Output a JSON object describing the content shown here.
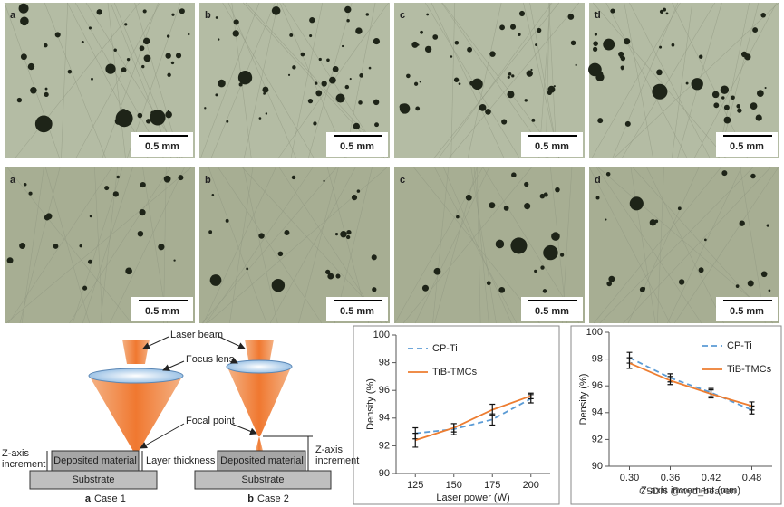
{
  "micrographs": {
    "rows": [
      [
        {
          "label": "a",
          "scale": "0.5 mm"
        },
        {
          "label": "b",
          "scale": "0.5 mm"
        },
        {
          "label": "c",
          "scale": "0.5 mm"
        },
        {
          "label": "d",
          "scale": "0.5 mm"
        }
      ],
      [
        {
          "label": "a",
          "scale": "0.5 mm"
        },
        {
          "label": "b",
          "scale": "0.5 mm"
        },
        {
          "label": "c",
          "scale": "0.5 mm"
        },
        {
          "label": "d",
          "scale": "0.5 mm"
        }
      ]
    ]
  },
  "diagram": {
    "laser_beam": "Laser beam",
    "focus_lens": "Focus lens",
    "focal_point": "Focal point",
    "layer_thickness": "Layer thickness",
    "case1": {
      "letter": "a",
      "caption": "Case 1",
      "deposited": "Deposited material",
      "substrate": "Substrate",
      "z_axis": [
        "Z-axis",
        "increment"
      ]
    },
    "case2": {
      "letter": "b",
      "caption": "Case 2",
      "deposited": "Deposited material",
      "substrate": "Substrate",
      "z_axis": [
        "Z-axis",
        "increment"
      ]
    }
  },
  "chart_data": [
    {
      "type": "line",
      "x_label": "Laser power (W)",
      "y_label": "Density (%)",
      "categories": [
        "125",
        "150",
        "175",
        "200"
      ],
      "ylim": [
        90,
        100
      ],
      "yticks": [
        90,
        92,
        94,
        96,
        98,
        100
      ],
      "series": [
        {
          "name": "CP-Ti",
          "color": "#5b9bd5",
          "dashed": true,
          "values": [
            92.9,
            93.2,
            93.9,
            95.4
          ],
          "errors": [
            0.4,
            0.4,
            0.4,
            0.3
          ]
        },
        {
          "name": "TiB-TMCs",
          "color": "#ed7d31",
          "dashed": false,
          "values": [
            92.4,
            93.3,
            94.6,
            95.6
          ],
          "errors": [
            0.5,
            0.3,
            0.4,
            0.2
          ]
        }
      ]
    },
    {
      "type": "line",
      "x_label": "Z-axis increment (mm)",
      "y_label": "Density (%)",
      "categories": [
        "0.30",
        "0.36",
        "0.42",
        "0.48"
      ],
      "ylim": [
        90,
        100
      ],
      "yticks": [
        90,
        92,
        94,
        96,
        98,
        100
      ],
      "series": [
        {
          "name": "CP-Ti",
          "color": "#5b9bd5",
          "dashed": true,
          "values": [
            98.1,
            96.6,
            95.5,
            94.2
          ],
          "errors": [
            0.4,
            0.3,
            0.3,
            0.3
          ]
        },
        {
          "name": "TiB-TMCs",
          "color": "#ed7d31",
          "dashed": false,
          "values": [
            97.7,
            96.4,
            95.4,
            94.5
          ],
          "errors": [
            0.4,
            0.3,
            0.3,
            0.3
          ]
        }
      ]
    }
  ],
  "watermark": "CSDN @wyd_beaven"
}
